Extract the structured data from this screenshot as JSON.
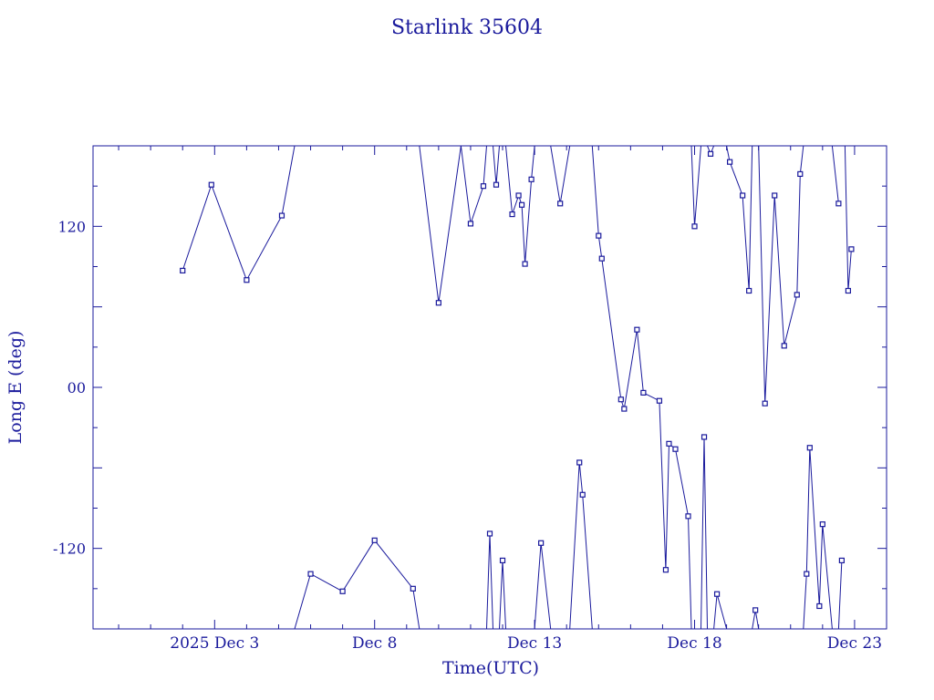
{
  "chart_data": {
    "type": "line",
    "title": "Starlink 35604",
    "xlabel": "Time(UTC)",
    "ylabel": "Long E (deg)",
    "x_unit": "days",
    "x_ticks": [
      {
        "label": "2025 Dec  3",
        "value": 3
      },
      {
        "label": "Dec  8",
        "value": 8
      },
      {
        "label": "Dec 13",
        "value": 13
      },
      {
        "label": "Dec 18",
        "value": 18
      },
      {
        "label": "Dec 23",
        "value": 23
      }
    ],
    "y_ticks": [
      {
        "label": "120",
        "value": 120
      },
      {
        "label": "00",
        "value": 0
      },
      {
        "label": "-120",
        "value": -120
      }
    ],
    "xlim": [
      -0.8,
      24.0
    ],
    "ylim": [
      -180,
      180
    ],
    "grid": false,
    "color": "#1a1a9c",
    "series": [
      {
        "values": [
          [
            2.0,
            87
          ],
          [
            2.9,
            151
          ],
          [
            4.0,
            80
          ],
          [
            5.1,
            128
          ],
          [
            5.5,
            180
          ],
          [
            5.5,
            -180
          ],
          [
            6.0,
            -139
          ],
          [
            7.0,
            -152
          ],
          [
            8.0,
            -114
          ],
          [
            9.2,
            -150
          ],
          [
            9.4,
            -180
          ],
          [
            9.4,
            180
          ],
          [
            10.0,
            63
          ],
          [
            10.7,
            180
          ],
          [
            11.0,
            122
          ],
          [
            11.4,
            150
          ],
          [
            11.5,
            180
          ],
          [
            11.5,
            -180
          ],
          [
            11.6,
            -109
          ],
          [
            11.7,
            -180
          ],
          [
            11.7,
            180
          ],
          [
            11.8,
            151
          ],
          [
            11.9,
            180
          ],
          [
            11.9,
            -180
          ],
          [
            12.0,
            -129
          ],
          [
            12.1,
            -180
          ],
          [
            12.1,
            180
          ],
          [
            12.3,
            129
          ],
          [
            12.5,
            143
          ],
          [
            12.6,
            136
          ],
          [
            12.7,
            92
          ],
          [
            12.9,
            155
          ],
          [
            13.0,
            180
          ],
          [
            13.0,
            -180
          ],
          [
            13.2,
            -116
          ],
          [
            13.5,
            -180
          ],
          [
            13.5,
            180
          ],
          [
            13.8,
            137
          ],
          [
            14.1,
            180
          ],
          [
            14.1,
            -180
          ],
          [
            14.4,
            -56
          ],
          [
            14.5,
            -80
          ],
          [
            14.8,
            -180
          ],
          [
            14.8,
            180
          ],
          [
            15.0,
            113
          ],
          [
            15.1,
            96
          ],
          [
            15.7,
            -9
          ],
          [
            15.8,
            -16
          ],
          [
            16.2,
            43
          ],
          [
            16.4,
            -4
          ],
          [
            16.9,
            -10
          ],
          [
            17.1,
            -136
          ],
          [
            17.2,
            -42
          ],
          [
            17.4,
            -46
          ],
          [
            17.8,
            -96
          ],
          [
            17.9,
            -180
          ],
          [
            17.9,
            180
          ],
          [
            18.0,
            120
          ],
          [
            18.2,
            180
          ],
          [
            18.2,
            -180
          ],
          [
            18.3,
            -37
          ],
          [
            18.4,
            -180
          ],
          [
            18.4,
            180
          ],
          [
            18.5,
            174
          ],
          [
            18.6,
            180
          ],
          [
            18.6,
            -180
          ],
          [
            18.7,
            -154
          ],
          [
            19.0,
            -180
          ],
          [
            19.0,
            180
          ],
          [
            19.1,
            168
          ],
          [
            19.5,
            143
          ],
          [
            19.7,
            72
          ],
          [
            19.8,
            180
          ],
          [
            19.8,
            -180
          ],
          [
            19.9,
            -166
          ],
          [
            20.0,
            -180
          ],
          [
            20.0,
            180
          ],
          [
            20.2,
            -12
          ],
          [
            20.5,
            143
          ],
          [
            20.8,
            31
          ],
          [
            21.2,
            69
          ],
          [
            21.3,
            159
          ],
          [
            21.4,
            180
          ],
          [
            21.4,
            -180
          ],
          [
            21.5,
            -139
          ],
          [
            21.6,
            -45
          ],
          [
            21.9,
            -163
          ],
          [
            22.0,
            -102
          ],
          [
            22.3,
            -180
          ],
          [
            22.3,
            180
          ],
          [
            22.5,
            137
          ],
          [
            22.5,
            -180
          ],
          [
            22.6,
            -129
          ],
          [
            22.6,
            180
          ],
          [
            22.7,
            180
          ],
          [
            22.8,
            72
          ],
          [
            22.9,
            103
          ]
        ],
        "markers": [
          [
            2.0,
            87
          ],
          [
            2.9,
            151
          ],
          [
            4.0,
            80
          ],
          [
            5.1,
            128
          ],
          [
            6.0,
            -139
          ],
          [
            7.0,
            -152
          ],
          [
            8.0,
            -114
          ],
          [
            9.2,
            -150
          ],
          [
            10.0,
            63
          ],
          [
            11.0,
            122
          ],
          [
            11.4,
            150
          ],
          [
            11.6,
            -109
          ],
          [
            11.8,
            151
          ],
          [
            12.0,
            -129
          ],
          [
            12.3,
            129
          ],
          [
            12.5,
            143
          ],
          [
            12.6,
            136
          ],
          [
            12.7,
            92
          ],
          [
            12.9,
            155
          ],
          [
            13.2,
            -116
          ],
          [
            13.8,
            137
          ],
          [
            14.4,
            -56
          ],
          [
            14.5,
            -80
          ],
          [
            15.0,
            113
          ],
          [
            15.1,
            96
          ],
          [
            15.7,
            -9
          ],
          [
            15.8,
            -16
          ],
          [
            16.2,
            43
          ],
          [
            16.4,
            -4
          ],
          [
            16.9,
            -10
          ],
          [
            17.1,
            -136
          ],
          [
            17.2,
            -42
          ],
          [
            17.4,
            -46
          ],
          [
            17.8,
            -96
          ],
          [
            18.0,
            120
          ],
          [
            18.3,
            -37
          ],
          [
            18.5,
            174
          ],
          [
            18.7,
            -154
          ],
          [
            19.1,
            168
          ],
          [
            19.5,
            143
          ],
          [
            19.7,
            72
          ],
          [
            19.9,
            -166
          ],
          [
            20.2,
            -12
          ],
          [
            20.5,
            143
          ],
          [
            20.8,
            31
          ],
          [
            21.2,
            69
          ],
          [
            21.3,
            159
          ],
          [
            21.5,
            -139
          ],
          [
            21.6,
            -45
          ],
          [
            21.9,
            -163
          ],
          [
            22.0,
            -102
          ],
          [
            22.5,
            137
          ],
          [
            22.6,
            -129
          ],
          [
            22.8,
            72
          ],
          [
            22.9,
            103
          ]
        ]
      }
    ]
  }
}
